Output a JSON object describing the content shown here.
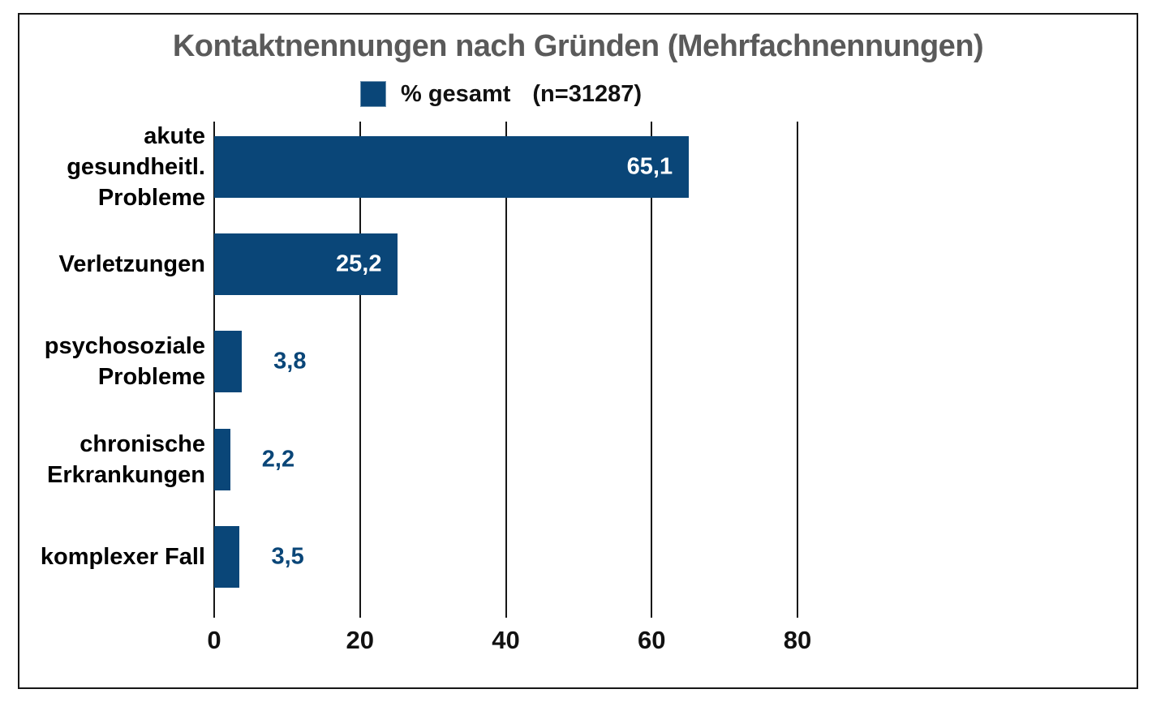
{
  "chart_data": {
    "type": "bar",
    "orientation": "horizontal",
    "title": "Kontaktnennungen nach Gründen (Mehrfachnennungen)",
    "legend": {
      "label": "% gesamt",
      "n_label": "(n=31287)",
      "position": "top"
    },
    "categories": [
      "akute gesundheitl. Probleme",
      "Verletzungen",
      "psychosoziale Probleme",
      "chronische Erkrankungen",
      "komplexer Fall"
    ],
    "category_lines": [
      [
        "akute",
        "gesundheitl.",
        "Probleme"
      ],
      [
        "Verletzungen"
      ],
      [
        "psychosoziale",
        "Probleme"
      ],
      [
        "chronische",
        "Erkrankungen"
      ],
      [
        "komplexer Fall"
      ]
    ],
    "values": [
      65.1,
      25.2,
      3.8,
      2.2,
      3.5
    ],
    "value_labels": [
      "65,1",
      "25,2",
      "3,8",
      "2,2",
      "3,5"
    ],
    "xlabel": "",
    "ylabel": "",
    "xlim": [
      0,
      80
    ],
    "xticks": [
      0,
      20,
      40,
      60,
      80
    ],
    "xtick_labels": [
      "0",
      "20",
      "40",
      "60",
      "80"
    ],
    "grid": "vertical-only",
    "colors": {
      "bar": "#0a4678",
      "title": "#5a5a5a",
      "inside_value_label": "#ffffff",
      "outside_value_label": "#0a4678",
      "axis": "#161616",
      "text": "#111111"
    }
  }
}
